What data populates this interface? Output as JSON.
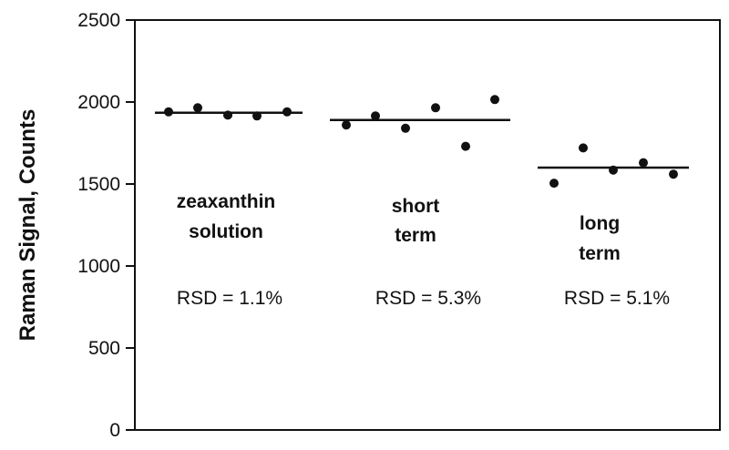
{
  "chart_data": {
    "type": "scatter",
    "ylabel": "Raman Signal, Counts",
    "ylim": [
      0,
      2500
    ],
    "yticks": [
      0,
      500,
      1000,
      1500,
      2000,
      2500
    ],
    "y_tick_labels": [
      "0",
      "500",
      "1000",
      "1500",
      "2000",
      "2500"
    ],
    "grid": false,
    "groups": [
      {
        "label_lines": [
          "zeaxanthin",
          "solution"
        ],
        "rsd": "RSD = 1.1%",
        "mean": 1935,
        "values": [
          1940,
          1965,
          1920,
          1915,
          1940
        ]
      },
      {
        "label_lines": [
          "short",
          "term"
        ],
        "rsd": "RSD = 5.3%",
        "mean": 1890,
        "values": [
          1860,
          1915,
          1840,
          1965,
          1730,
          2015
        ]
      },
      {
        "label_lines": [
          "long",
          "term"
        ],
        "rsd": "RSD = 5.1%",
        "mean": 1600,
        "values": [
          1505,
          1720,
          1585,
          1630,
          1560
        ]
      }
    ]
  }
}
